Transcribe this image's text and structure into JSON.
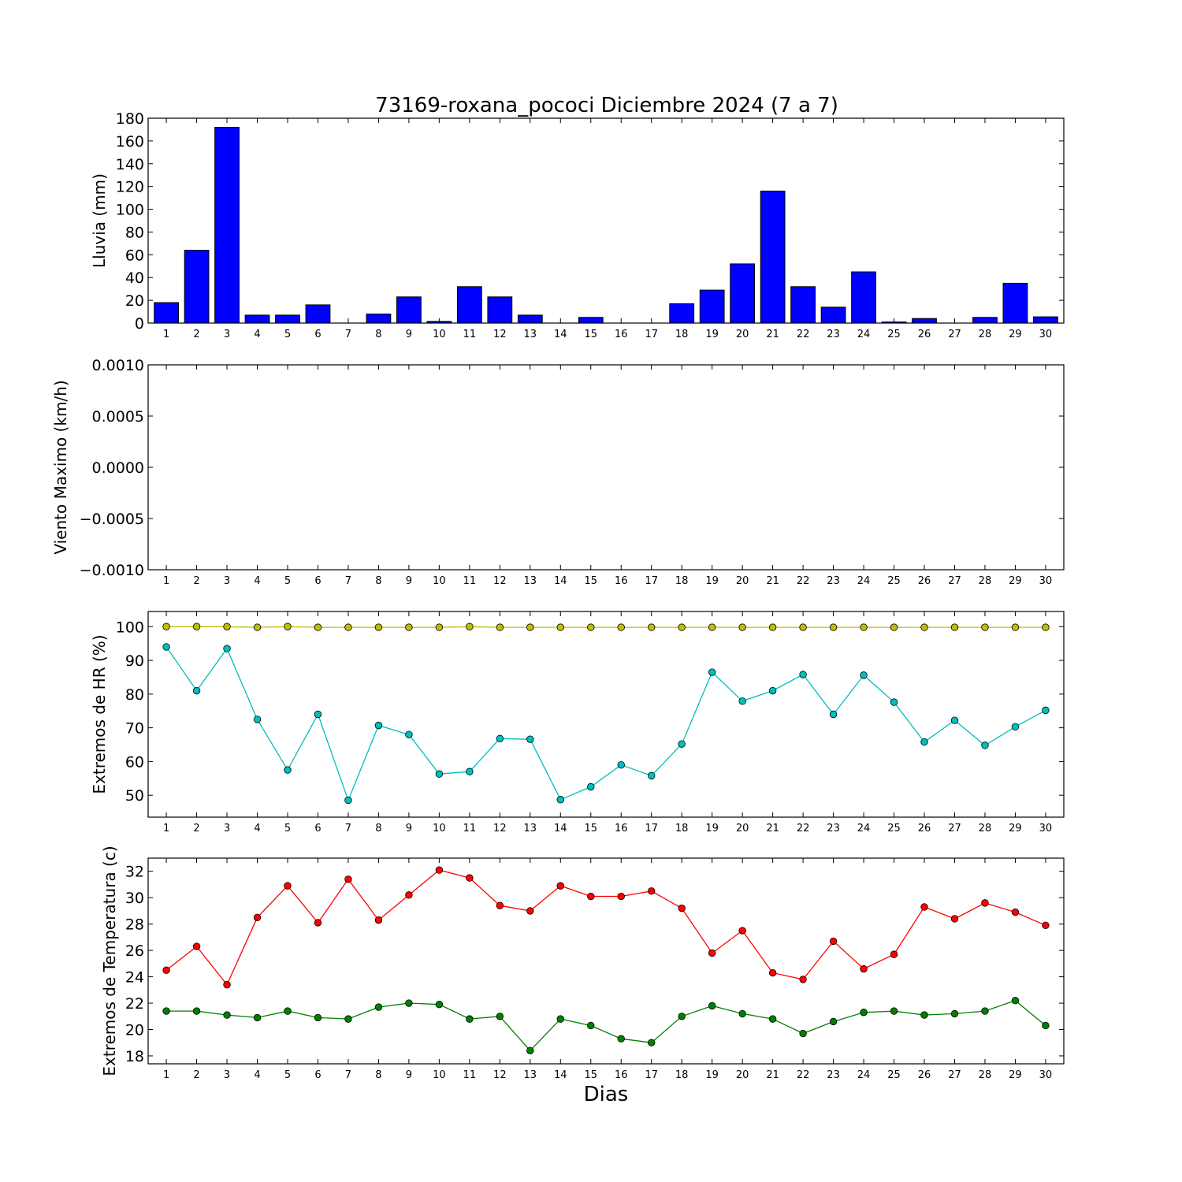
{
  "figure": {
    "title": "73169-roxana_pococi Diciembre 2024  (7 a 7)",
    "xlabel": "Dias"
  },
  "chart_data": [
    {
      "type": "bar",
      "ylabel": "Lluvia (mm)",
      "categories": [
        1,
        2,
        3,
        4,
        5,
        6,
        7,
        8,
        9,
        10,
        11,
        12,
        13,
        14,
        15,
        16,
        17,
        18,
        19,
        20,
        21,
        22,
        23,
        24,
        25,
        26,
        27,
        28,
        29,
        30
      ],
      "values": [
        18,
        64,
        172,
        7,
        7,
        16,
        0,
        8,
        23,
        1.5,
        32,
        23,
        7,
        0,
        5,
        0,
        0,
        17,
        29,
        52,
        116,
        32,
        14,
        45,
        1,
        4,
        0,
        5,
        35,
        5.5
      ],
      "ylim": [
        0,
        180
      ],
      "yticks": [
        "0",
        "20",
        "40",
        "60",
        "80",
        "100",
        "120",
        "140",
        "160",
        "180"
      ],
      "color": "#0000ff",
      "grid": false
    },
    {
      "type": "line",
      "ylabel": "Viento Maximo (km/h)",
      "categories": [
        1,
        2,
        3,
        4,
        5,
        6,
        7,
        8,
        9,
        10,
        11,
        12,
        13,
        14,
        15,
        16,
        17,
        18,
        19,
        20,
        21,
        22,
        23,
        24,
        25,
        26,
        27,
        28,
        29,
        30
      ],
      "series": [],
      "ylim": [
        -0.001,
        0.001
      ],
      "yticks": [
        "−0.0010",
        "−0.0005",
        "0.0000",
        "0.0005",
        "0.0010"
      ],
      "grid": false
    },
    {
      "type": "line",
      "ylabel": "Extremos de HR (%)",
      "categories": [
        1,
        2,
        3,
        4,
        5,
        6,
        7,
        8,
        9,
        10,
        11,
        12,
        13,
        14,
        15,
        16,
        17,
        18,
        19,
        20,
        21,
        22,
        23,
        24,
        25,
        26,
        27,
        28,
        29,
        30
      ],
      "series": [
        {
          "color": "#bfbf00",
          "values": [
            100,
            100,
            100,
            99.8,
            100,
            99.8,
            99.8,
            99.8,
            99.8,
            99.8,
            100,
            99.8,
            99.8,
            99.8,
            99.8,
            99.8,
            99.8,
            99.8,
            99.8,
            99.8,
            99.8,
            99.8,
            99.8,
            99.8,
            99.8,
            99.8,
            99.8,
            99.8,
            99.8,
            99.8
          ]
        },
        {
          "color": "#00bfbf",
          "values": [
            94,
            81,
            93.5,
            72.5,
            57.5,
            74,
            48.5,
            70.7,
            68,
            56.3,
            57,
            66.8,
            66.6,
            48.7,
            52.5,
            59,
            55.8,
            65.2,
            86.5,
            77.9,
            81,
            85.8,
            74,
            85.6,
            77.6,
            65.8,
            72.2,
            64.8,
            70.3,
            75.2
          ]
        }
      ],
      "ylim": [
        43.5,
        104.5
      ],
      "yticks": [
        "50",
        "60",
        "70",
        "80",
        "90",
        "100"
      ],
      "grid": false
    },
    {
      "type": "line",
      "ylabel": "Extremos de Temperatura (c)",
      "categories": [
        1,
        2,
        3,
        4,
        5,
        6,
        7,
        8,
        9,
        10,
        11,
        12,
        13,
        14,
        15,
        16,
        17,
        18,
        19,
        20,
        21,
        22,
        23,
        24,
        25,
        26,
        27,
        28,
        29,
        30
      ],
      "series": [
        {
          "color": "#ff0000",
          "values": [
            24.5,
            26.3,
            23.4,
            28.5,
            30.9,
            28.1,
            31.4,
            28.3,
            30.2,
            32.1,
            31.5,
            29.4,
            29.0,
            30.9,
            30.1,
            30.1,
            30.5,
            29.2,
            25.8,
            27.5,
            24.3,
            23.8,
            26.7,
            24.6,
            25.7,
            29.3,
            28.4,
            29.6,
            28.9,
            27.9
          ]
        },
        {
          "color": "#008000",
          "values": [
            21.4,
            21.4,
            21.1,
            20.9,
            21.4,
            20.9,
            20.8,
            21.7,
            22.0,
            21.9,
            20.8,
            21.0,
            18.4,
            20.8,
            20.3,
            19.3,
            19.0,
            21.0,
            21.8,
            21.2,
            20.8,
            19.7,
            20.6,
            21.3,
            21.4,
            21.1,
            21.2,
            21.4,
            22.2,
            20.3
          ]
        }
      ],
      "ylim": [
        17.4,
        33.0
      ],
      "yticks": [
        "18",
        "20",
        "22",
        "24",
        "26",
        "28",
        "30",
        "32"
      ],
      "grid": false
    }
  ]
}
